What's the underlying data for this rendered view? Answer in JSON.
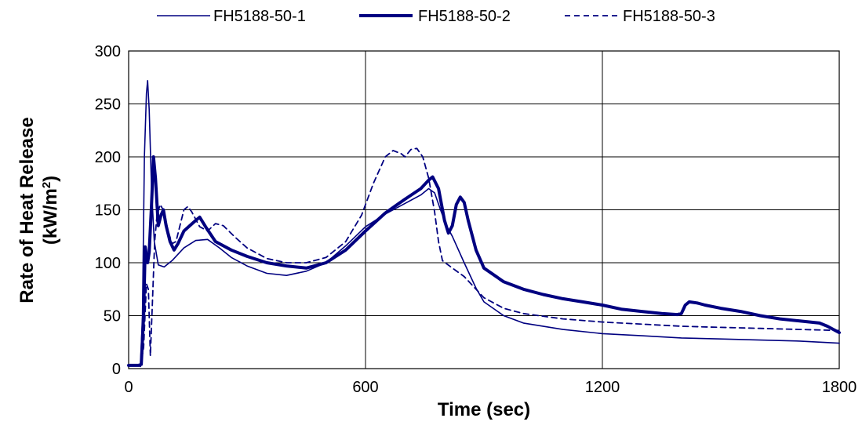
{
  "chart_data": {
    "type": "line",
    "title": "",
    "xlabel": "Time (sec)",
    "ylabel_line1": "Rate of Heat Release",
    "ylabel_line2_prefix": "(kW/m",
    "ylabel_line2_sup": "2",
    "ylabel_line2_suffix": ")",
    "xlim": [
      0,
      1800
    ],
    "ylim": [
      0,
      300
    ],
    "xticks": [
      0,
      600,
      1200,
      1800
    ],
    "yticks": [
      0,
      50,
      100,
      150,
      200,
      250,
      300
    ],
    "grid": true,
    "legend_position": "top",
    "line_color": "#000080",
    "series": [
      {
        "name": "FH5188-50-1",
        "style": "thin",
        "points": [
          [
            0,
            3
          ],
          [
            20,
            3
          ],
          [
            30,
            2
          ],
          [
            35,
            50
          ],
          [
            40,
            200
          ],
          [
            45,
            260
          ],
          [
            48,
            272
          ],
          [
            52,
            245
          ],
          [
            58,
            170
          ],
          [
            65,
            120
          ],
          [
            75,
            98
          ],
          [
            90,
            96
          ],
          [
            110,
            102
          ],
          [
            140,
            114
          ],
          [
            170,
            121
          ],
          [
            200,
            122
          ],
          [
            230,
            114
          ],
          [
            260,
            105
          ],
          [
            300,
            97
          ],
          [
            350,
            90
          ],
          [
            400,
            88
          ],
          [
            450,
            92
          ],
          [
            500,
            100
          ],
          [
            550,
            116
          ],
          [
            600,
            134
          ],
          [
            650,
            146
          ],
          [
            700,
            156
          ],
          [
            740,
            164
          ],
          [
            760,
            170
          ],
          [
            775,
            166
          ],
          [
            790,
            150
          ],
          [
            805,
            135
          ],
          [
            820,
            125
          ],
          [
            850,
            100
          ],
          [
            880,
            76
          ],
          [
            900,
            63
          ],
          [
            950,
            50
          ],
          [
            1000,
            43
          ],
          [
            1100,
            37
          ],
          [
            1200,
            33
          ],
          [
            1300,
            31
          ],
          [
            1400,
            29
          ],
          [
            1500,
            28
          ],
          [
            1600,
            27
          ],
          [
            1700,
            26
          ],
          [
            1800,
            24
          ]
        ]
      },
      {
        "name": "FH5188-50-2",
        "style": "thick",
        "points": [
          [
            0,
            3
          ],
          [
            25,
            3
          ],
          [
            32,
            4
          ],
          [
            38,
            50
          ],
          [
            42,
            115
          ],
          [
            48,
            100
          ],
          [
            52,
            110
          ],
          [
            58,
            155
          ],
          [
            63,
            200
          ],
          [
            68,
            180
          ],
          [
            75,
            135
          ],
          [
            82,
            145
          ],
          [
            88,
            150
          ],
          [
            95,
            135
          ],
          [
            105,
            120
          ],
          [
            115,
            112
          ],
          [
            125,
            118
          ],
          [
            140,
            130
          ],
          [
            155,
            135
          ],
          [
            170,
            140
          ],
          [
            180,
            143
          ],
          [
            195,
            134
          ],
          [
            220,
            120
          ],
          [
            260,
            112
          ],
          [
            300,
            106
          ],
          [
            350,
            100
          ],
          [
            400,
            97
          ],
          [
            450,
            95
          ],
          [
            500,
            100
          ],
          [
            550,
            112
          ],
          [
            600,
            130
          ],
          [
            650,
            147
          ],
          [
            700,
            160
          ],
          [
            740,
            170
          ],
          [
            760,
            178
          ],
          [
            770,
            181
          ],
          [
            785,
            170
          ],
          [
            800,
            140
          ],
          [
            810,
            128
          ],
          [
            820,
            135
          ],
          [
            830,
            155
          ],
          [
            840,
            162
          ],
          [
            850,
            157
          ],
          [
            860,
            140
          ],
          [
            880,
            112
          ],
          [
            900,
            95
          ],
          [
            950,
            82
          ],
          [
            1000,
            75
          ],
          [
            1050,
            70
          ],
          [
            1100,
            66
          ],
          [
            1150,
            63
          ],
          [
            1200,
            60
          ],
          [
            1250,
            56
          ],
          [
            1300,
            54
          ],
          [
            1350,
            52
          ],
          [
            1390,
            51
          ],
          [
            1400,
            52
          ],
          [
            1410,
            60
          ],
          [
            1420,
            63
          ],
          [
            1440,
            62
          ],
          [
            1460,
            60
          ],
          [
            1500,
            57
          ],
          [
            1550,
            54
          ],
          [
            1600,
            50
          ],
          [
            1650,
            47
          ],
          [
            1700,
            45
          ],
          [
            1750,
            43
          ],
          [
            1770,
            40
          ],
          [
            1800,
            34
          ]
        ]
      },
      {
        "name": "FH5188-50-3",
        "style": "dashed",
        "points": [
          [
            0,
            3
          ],
          [
            30,
            3
          ],
          [
            38,
            20
          ],
          [
            45,
            80
          ],
          [
            50,
            75
          ],
          [
            55,
            12
          ],
          [
            60,
            60
          ],
          [
            66,
            120
          ],
          [
            72,
            145
          ],
          [
            80,
            155
          ],
          [
            90,
            148
          ],
          [
            100,
            130
          ],
          [
            110,
            118
          ],
          [
            120,
            120
          ],
          [
            130,
            135
          ],
          [
            140,
            150
          ],
          [
            150,
            153
          ],
          [
            160,
            148
          ],
          [
            180,
            134
          ],
          [
            200,
            130
          ],
          [
            220,
            137
          ],
          [
            240,
            135
          ],
          [
            270,
            124
          ],
          [
            300,
            114
          ],
          [
            350,
            104
          ],
          [
            400,
            100
          ],
          [
            450,
            100
          ],
          [
            500,
            105
          ],
          [
            550,
            120
          ],
          [
            590,
            145
          ],
          [
            620,
            175
          ],
          [
            650,
            200
          ],
          [
            670,
            206
          ],
          [
            690,
            203
          ],
          [
            700,
            200
          ],
          [
            715,
            207
          ],
          [
            730,
            208
          ],
          [
            745,
            200
          ],
          [
            760,
            180
          ],
          [
            775,
            148
          ],
          [
            785,
            120
          ],
          [
            795,
            102
          ],
          [
            820,
            95
          ],
          [
            850,
            87
          ],
          [
            880,
            75
          ],
          [
            900,
            67
          ],
          [
            950,
            57
          ],
          [
            1000,
            52
          ],
          [
            1100,
            47
          ],
          [
            1200,
            44
          ],
          [
            1300,
            42
          ],
          [
            1400,
            40
          ],
          [
            1500,
            39
          ],
          [
            1600,
            38
          ],
          [
            1700,
            37
          ],
          [
            1800,
            36
          ]
        ]
      }
    ]
  }
}
